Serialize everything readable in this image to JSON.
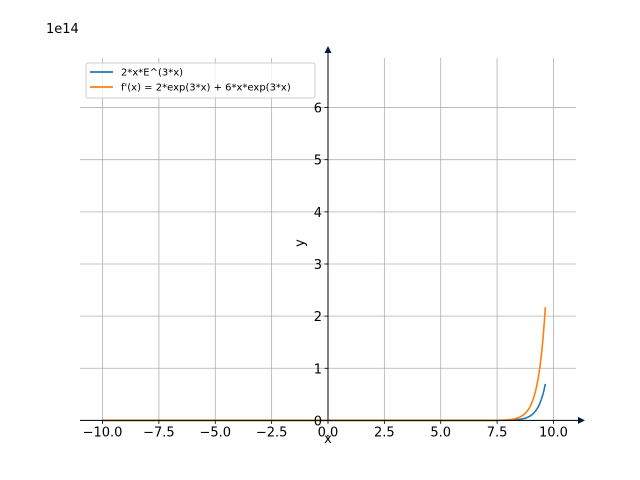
{
  "chart_data": {
    "type": "line",
    "xlabel": "x",
    "ylabel": "y",
    "y_offset_label": "1e14",
    "xlim": [
      -11.0,
      11.0
    ],
    "ylim": [
      -0.03,
      6.95
    ],
    "y_scale_factor": 100000000000000.0,
    "x_ticks": [
      -10.0,
      -7.5,
      -5.0,
      -2.5,
      0.0,
      2.5,
      5.0,
      7.5,
      10.0
    ],
    "x_tick_labels": [
      "−10.0",
      "−7.5",
      "−5.0",
      "−2.5",
      "0.0",
      "2.5",
      "5.0",
      "7.5",
      "10.0"
    ],
    "y_ticks": [
      0,
      1,
      2,
      3,
      4,
      5,
      6
    ],
    "y_tick_labels": [
      "0",
      "1",
      "2",
      "3",
      "4",
      "5",
      "6"
    ],
    "grid": true,
    "legend_position": "top-left",
    "x_range": [
      -10,
      9.64
    ],
    "series": [
      {
        "name": "2*x*E^(3*x)",
        "color": "#1f77b4",
        "expr": "2*x*exp(3*x)"
      },
      {
        "name": "f'(x) = 2*exp(3*x) + 6*x*exp(3*x)",
        "color": "#ff7f0e",
        "expr": "2*exp(3*x) + 6*x*exp(3*x)"
      }
    ]
  }
}
